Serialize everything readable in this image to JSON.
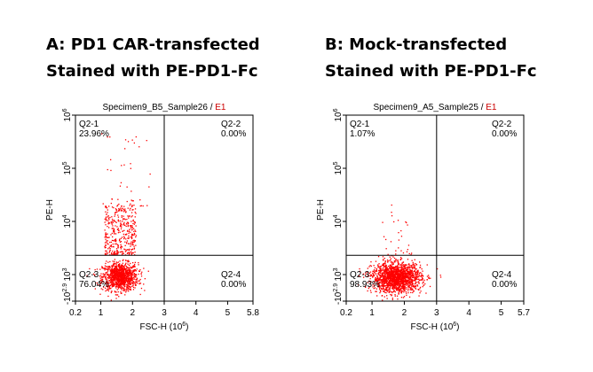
{
  "headings": {
    "left": [
      "A: PD1 CAR-transfected",
      "Stained with PE-PD1-Fc"
    ],
    "right": [
      "B: Mock-transfected",
      "Stained with PE-PD1-Fc"
    ]
  },
  "colors": {
    "dots": "#ff0000",
    "axis": "#000000",
    "suffix": "#cc0000"
  },
  "chart_data": [
    {
      "type": "scatter",
      "title": "Specimen9_B5_Sample26",
      "title_suffix": "E1",
      "xlabel": "FSC-H",
      "xlabel_unit": "(10",
      "xlabel_exp": "6",
      "xlabel_close": ")",
      "ylabel": "PE-H",
      "xlim": [
        0.2,
        5.8
      ],
      "x_ticks": [
        0.2,
        1,
        2,
        3,
        4,
        5,
        5.8
      ],
      "x_tick_labels": [
        "0.2",
        "1",
        "2",
        "3",
        "4",
        "5",
        "5.8"
      ],
      "y_scale": "log",
      "y_ticks": [
        {
          "value": 1000,
          "label": "10",
          "exp": "3"
        },
        {
          "value": 10000,
          "label": "10",
          "exp": "4"
        },
        {
          "value": 100000,
          "label": "10",
          "exp": "5"
        },
        {
          "value": 1000000,
          "label": "10",
          "exp": "6"
        }
      ],
      "y_bottom_label": "-10",
      "y_bottom_exp": "2.9",
      "gate": {
        "x": 3.0,
        "y": 2300
      },
      "quadrants": [
        {
          "id": "Q2-1",
          "pct": "23.96%",
          "pos": "top-left"
        },
        {
          "id": "Q2-2",
          "pct": "0.00%",
          "pos": "top-right"
        },
        {
          "id": "Q2-3",
          "pct": "76.04%",
          "pos": "bottom-left"
        },
        {
          "id": "Q2-4",
          "pct": "0.00%",
          "pos": "bottom-right"
        }
      ],
      "populations": [
        {
          "kind": "main",
          "x_center": 1.6,
          "y_log_center": 2.97,
          "x_sd": 0.28,
          "y_log_sd": 0.13,
          "count": 1100
        },
        {
          "kind": "upper",
          "x_range": [
            1.1,
            2.1
          ],
          "y_log_range": [
            3.38,
            4.3
          ],
          "count": 380
        },
        {
          "kind": "sparse",
          "x_range": [
            1.0,
            2.6
          ],
          "y_log_range": [
            4.3,
            5.8
          ],
          "count": 45
        }
      ]
    },
    {
      "type": "scatter",
      "title": "Specimen9_A5_Sample25",
      "title_suffix": "E1",
      "xlabel": "FSC-H",
      "xlabel_unit": "(10",
      "xlabel_exp": "6",
      "xlabel_close": ")",
      "ylabel": "PE-H",
      "xlim": [
        0.2,
        5.7
      ],
      "x_ticks": [
        0.2,
        1,
        2,
        3,
        4,
        5,
        5.7
      ],
      "x_tick_labels": [
        "0.2",
        "1",
        "2",
        "3",
        "4",
        "5",
        "5.7"
      ],
      "y_scale": "log",
      "y_ticks": [
        {
          "value": 1000,
          "label": "10",
          "exp": "3"
        },
        {
          "value": 10000,
          "label": "10",
          "exp": "4"
        },
        {
          "value": 100000,
          "label": "10",
          "exp": "5"
        },
        {
          "value": 1000000,
          "label": "10",
          "exp": "6"
        }
      ],
      "y_bottom_label": "-10",
      "y_bottom_exp": "2.9",
      "gate": {
        "x": 3.0,
        "y": 2300
      },
      "quadrants": [
        {
          "id": "Q2-1",
          "pct": "1.07%",
          "pos": "top-left"
        },
        {
          "id": "Q2-2",
          "pct": "0.00%",
          "pos": "top-right"
        },
        {
          "id": "Q2-3",
          "pct": "98.93%",
          "pos": "bottom-left"
        },
        {
          "id": "Q2-4",
          "pct": "0.00%",
          "pos": "bottom-right"
        }
      ],
      "populations": [
        {
          "kind": "main",
          "x_center": 1.75,
          "y_log_center": 2.95,
          "x_sd": 0.38,
          "y_log_sd": 0.14,
          "count": 1700
        },
        {
          "kind": "upper",
          "x_range": [
            1.3,
            2.2
          ],
          "y_log_range": [
            3.38,
            4.0
          ],
          "count": 22
        },
        {
          "kind": "sparse",
          "x_range": [
            1.5,
            2.2
          ],
          "y_log_range": [
            4.0,
            4.6
          ],
          "count": 6
        }
      ]
    }
  ]
}
